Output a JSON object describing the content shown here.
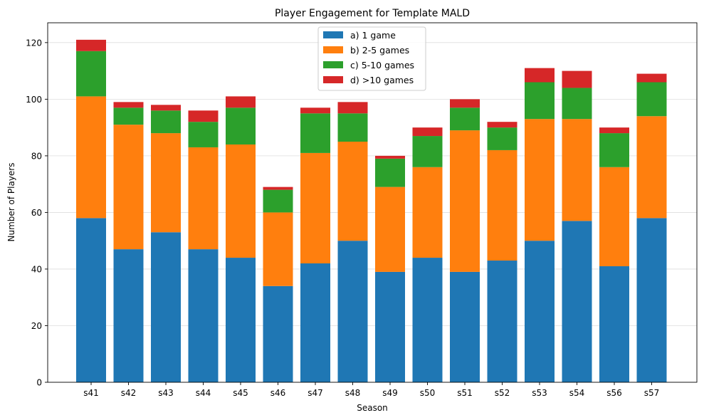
{
  "chart_data": {
    "type": "bar",
    "stacked": true,
    "title": "Player Engagement for Template MALD",
    "xlabel": "Season",
    "ylabel": "Number of Players",
    "ylim": [
      0,
      127
    ],
    "yticks": [
      0,
      20,
      40,
      60,
      80,
      100,
      120
    ],
    "grid": "horizontal",
    "legend_position": "top-center",
    "categories": [
      "s41",
      "s42",
      "s43",
      "s44",
      "s45",
      "s46",
      "s47",
      "s48",
      "s49",
      "s50",
      "s51",
      "s52",
      "s53",
      "s54",
      "s56",
      "s57"
    ],
    "series": [
      {
        "name": "a) 1 game",
        "color": "#1f77b4",
        "values": [
          58,
          47,
          53,
          47,
          44,
          34,
          42,
          50,
          39,
          44,
          39,
          43,
          50,
          57,
          41,
          58
        ]
      },
      {
        "name": "b) 2-5 games",
        "color": "#ff7f0e",
        "values": [
          43,
          44,
          35,
          36,
          40,
          26,
          39,
          35,
          30,
          32,
          50,
          39,
          43,
          36,
          35,
          36
        ]
      },
      {
        "name": "c) 5-10 games",
        "color": "#2ca02c",
        "values": [
          16,
          6,
          8,
          9,
          13,
          8,
          14,
          10,
          10,
          11,
          8,
          8,
          13,
          11,
          12,
          12
        ]
      },
      {
        "name": "d) >10 games",
        "color": "#d62728",
        "values": [
          4,
          2,
          2,
          4,
          4,
          1,
          2,
          4,
          1,
          3,
          3,
          2,
          5,
          6,
          2,
          3
        ]
      }
    ]
  }
}
